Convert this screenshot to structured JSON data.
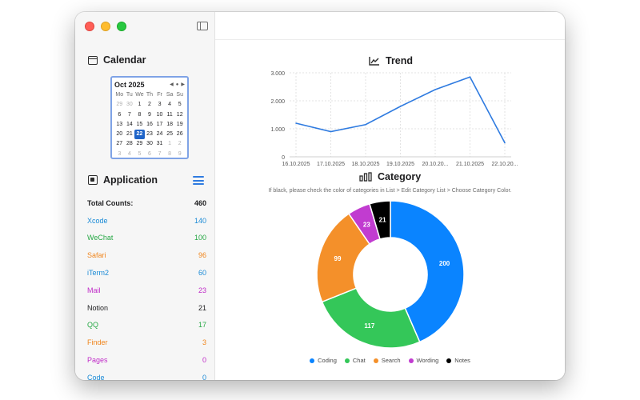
{
  "sidebar": {
    "calendar_title": "Calendar",
    "application_title": "Application",
    "calendar": {
      "month": "Oct 2025",
      "weekdays": [
        "Mo",
        "Tu",
        "We",
        "Th",
        "Fr",
        "Sa",
        "Su"
      ],
      "days": [
        "29",
        "30",
        "1",
        "2",
        "3",
        "4",
        "5",
        "6",
        "7",
        "8",
        "9",
        "10",
        "11",
        "12",
        "13",
        "14",
        "15",
        "16",
        "17",
        "18",
        "19",
        "20",
        "21",
        "22",
        "23",
        "24",
        "25",
        "26",
        "27",
        "28",
        "29",
        "30",
        "31",
        "1",
        "2",
        "3",
        "4",
        "5",
        "6",
        "7",
        "8",
        "9"
      ],
      "muted": [
        0,
        1,
        33,
        34,
        35,
        36,
        37,
        38,
        39,
        40,
        41
      ],
      "selected": 23
    },
    "apps": [
      {
        "name": "Total Counts:",
        "count": "460",
        "color": "#1d1d1f"
      },
      {
        "name": "Xcode",
        "count": "140",
        "color": "#1a8ad6"
      },
      {
        "name": "WeChat",
        "count": "100",
        "color": "#27a845"
      },
      {
        "name": "Safari",
        "count": "96",
        "color": "#f0851c"
      },
      {
        "name": "iTerm2",
        "count": "60",
        "color": "#1a8ad6"
      },
      {
        "name": "Mail",
        "count": "23",
        "color": "#c02cc8"
      },
      {
        "name": "Notion",
        "count": "21",
        "color": "#1d1d1f"
      },
      {
        "name": "QQ",
        "count": "17",
        "color": "#27a845"
      },
      {
        "name": "Finder",
        "count": "3",
        "color": "#f0851c"
      },
      {
        "name": "Pages",
        "count": "0",
        "color": "#c02cc8"
      },
      {
        "name": "Code",
        "count": "0",
        "color": "#1a8ad6"
      }
    ]
  },
  "main": {
    "trend_title": "Trend",
    "category_title": "Category",
    "category_note": "If black, please check the color of categories in List > Edit Category List > Choose Category Color."
  },
  "chart_data": [
    {
      "type": "line",
      "title": "Trend",
      "x": [
        "16.10.2025",
        "17.10.2025",
        "18.10.2025",
        "19.10.2025",
        "20.10.20...",
        "21.10.2025",
        "22.10.20..."
      ],
      "values": [
        1200,
        900,
        1150,
        1800,
        2400,
        2850,
        500
      ],
      "yticks": [
        "0",
        "1.000",
        "2.000",
        "3.000"
      ],
      "ylim": [
        0,
        3000
      ],
      "grid": true,
      "color": "#2f7be0"
    },
    {
      "type": "pie",
      "title": "Category",
      "labels": [
        "Coding",
        "Chat",
        "Search",
        "Wording",
        "Notes"
      ],
      "values": [
        200,
        117,
        99,
        23,
        21
      ],
      "colors": [
        "#0a84ff",
        "#34c759",
        "#f4902a",
        "#c13cd0",
        "#000000"
      ],
      "legend": "bottom"
    }
  ]
}
